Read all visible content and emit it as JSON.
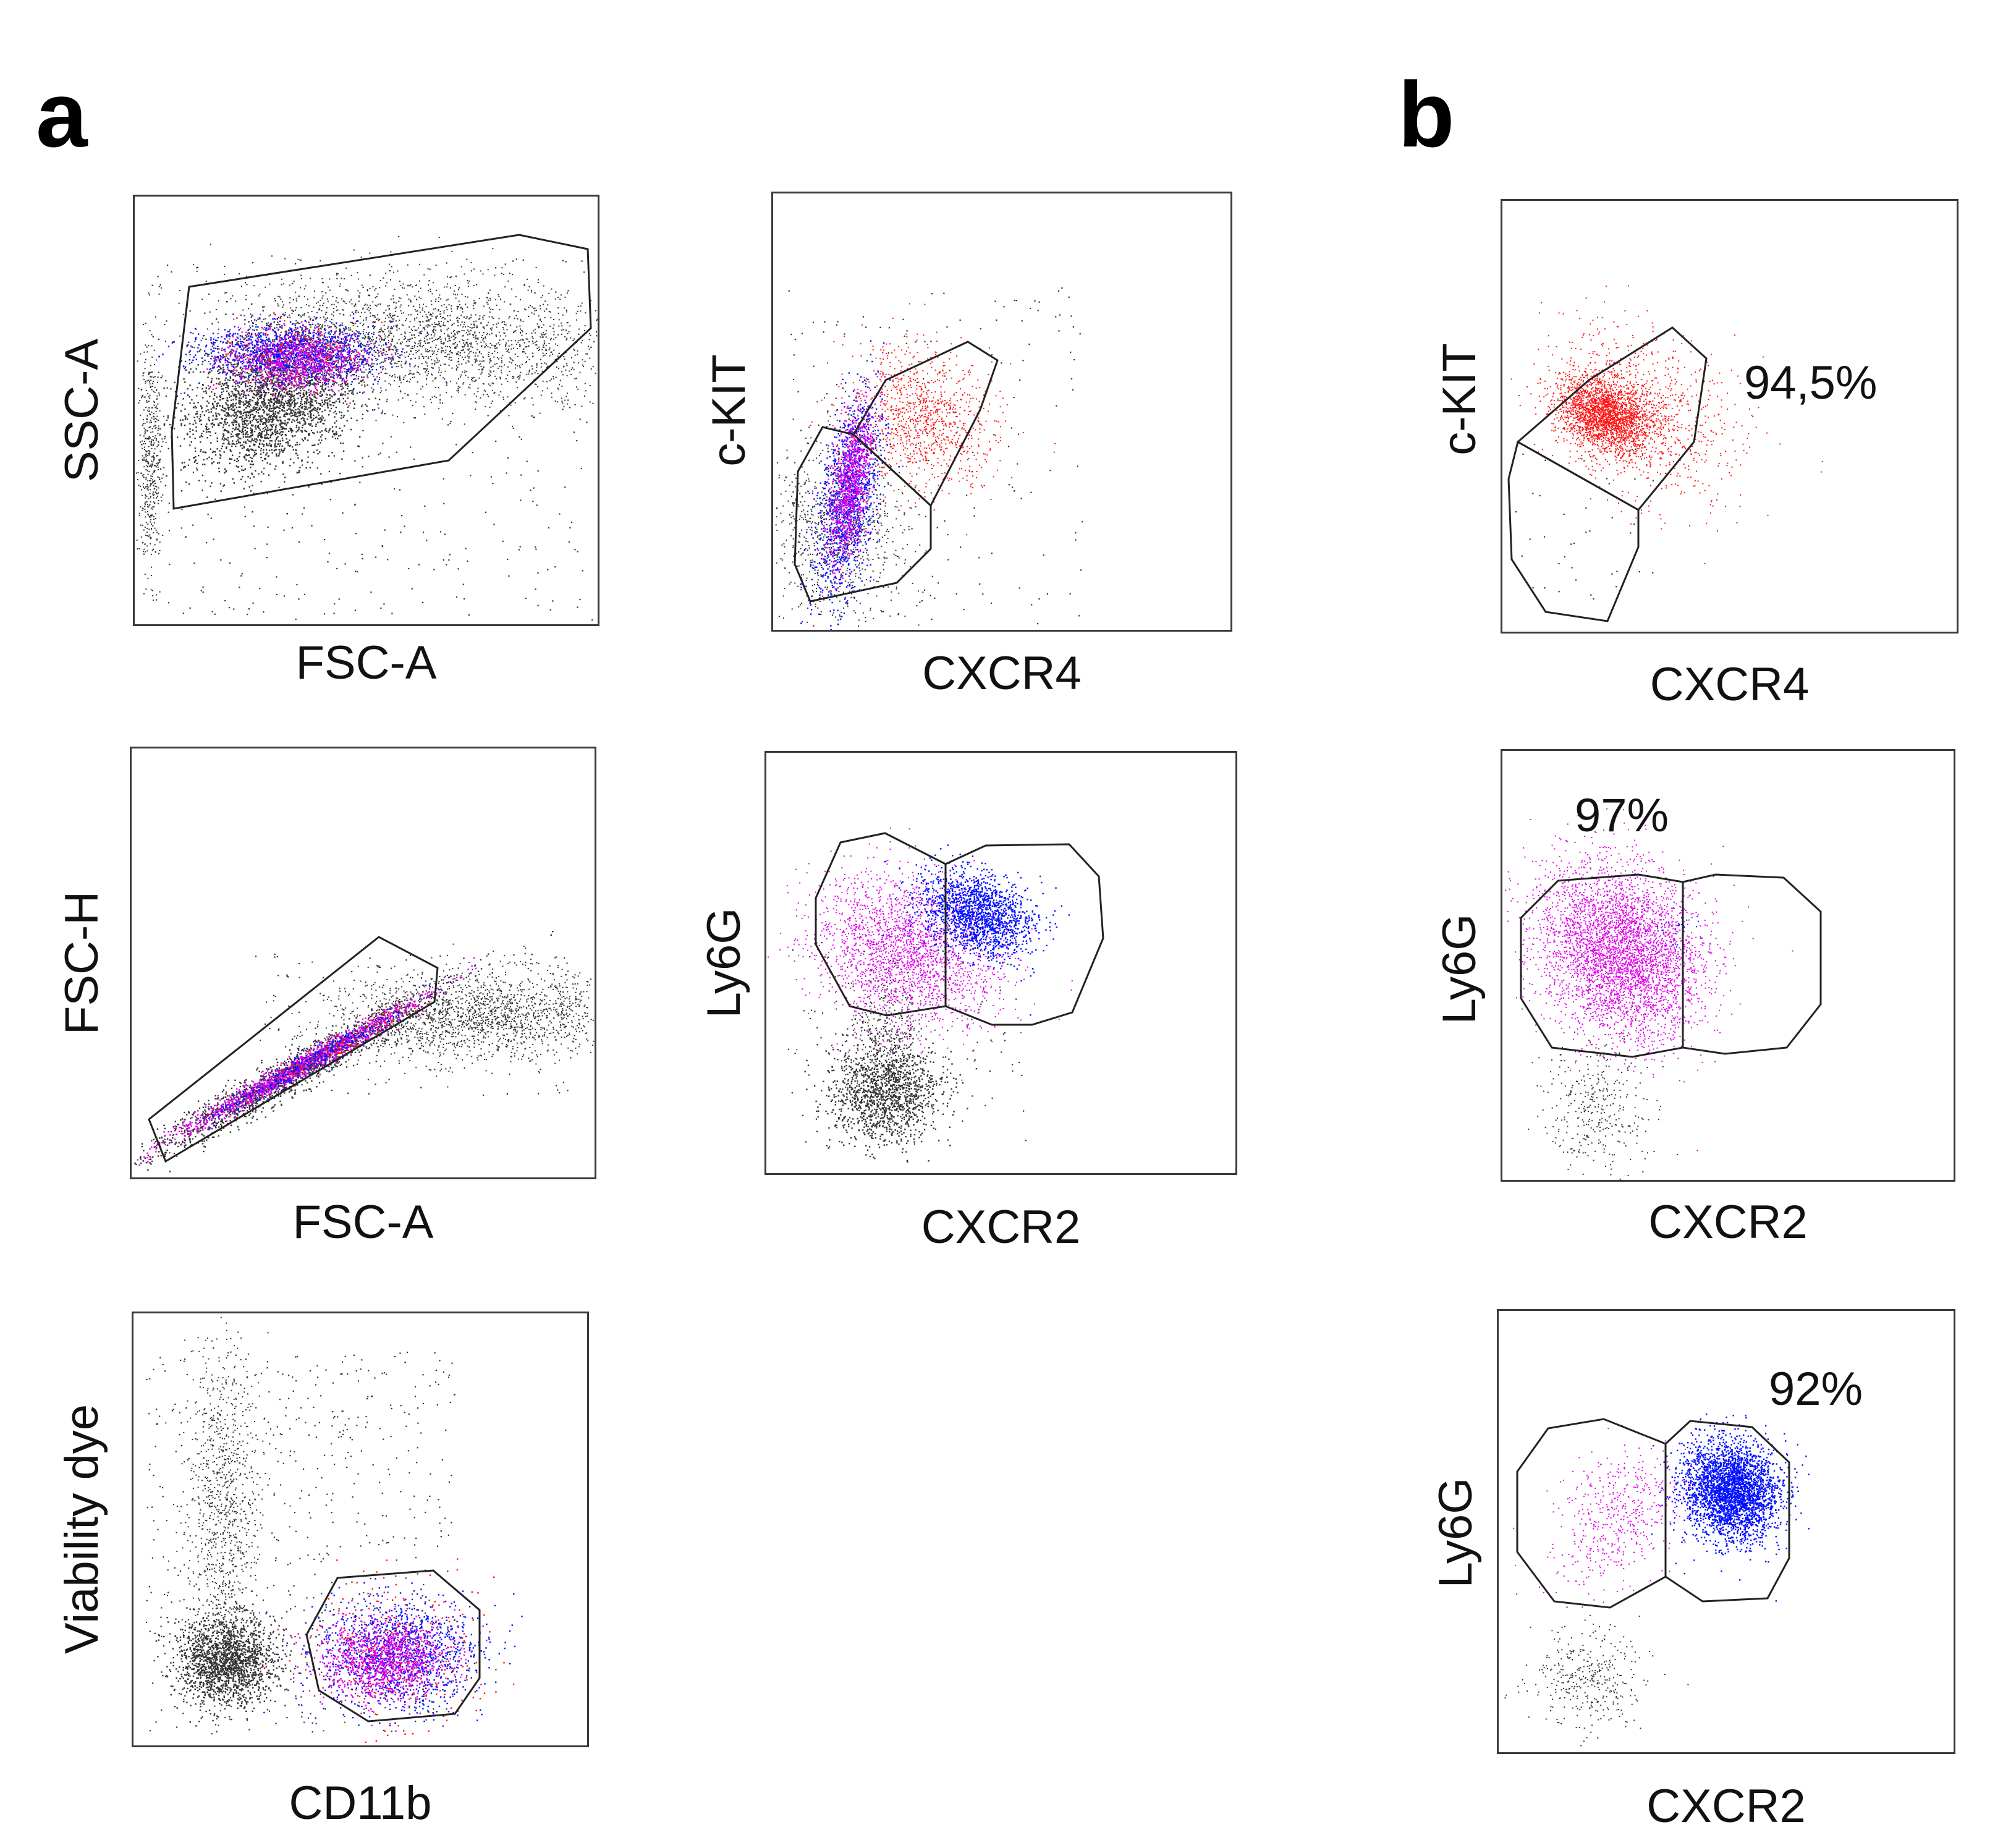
{
  "panels": {
    "a": "a",
    "b": "b"
  },
  "colors": {
    "background_events": "#333333",
    "red": "#ff1414",
    "magenta": "#e000e8",
    "blue": "#0010ff",
    "gate": "#222222"
  },
  "chart_data": [
    {
      "id": "a1",
      "type": "scatter",
      "panel": "a",
      "xlabel": "FSC-A",
      "ylabel": "SSC-A",
      "percent": "",
      "description": "Flow cytometry dot plot: cells gated by forward vs side scatter",
      "populations": [
        "background",
        "red",
        "magenta",
        "blue"
      ]
    },
    {
      "id": "a2",
      "type": "scatter",
      "panel": "a",
      "xlabel": "FSC-A",
      "ylabel": "FSC-H",
      "percent": "",
      "description": "Singlet gate: FSC-H vs FSC-A",
      "populations": [
        "background",
        "red",
        "magenta",
        "blue"
      ]
    },
    {
      "id": "a3",
      "type": "scatter",
      "panel": "a",
      "xlabel": "CD11b",
      "ylabel": "Viability dye",
      "percent": "",
      "description": "Live CD11b+ gate",
      "populations": [
        "background",
        "red",
        "magenta",
        "blue"
      ]
    },
    {
      "id": "a4",
      "type": "scatter",
      "panel": "a",
      "xlabel": "CXCR4",
      "ylabel": "c-KIT",
      "percent": "",
      "description": "c-KIT vs CXCR4 with two gates",
      "populations": [
        "background",
        "red",
        "magenta",
        "blue"
      ]
    },
    {
      "id": "a5",
      "type": "scatter",
      "panel": "a",
      "xlabel": "CXCR2",
      "ylabel": "Ly6G",
      "percent": "",
      "description": "Ly6G vs CXCR2 with two gates (CXCR2 low / high)",
      "populations": [
        "background",
        "magenta",
        "blue"
      ]
    },
    {
      "id": "b1",
      "type": "scatter",
      "panel": "b",
      "xlabel": "CXCR4",
      "ylabel": "c-KIT",
      "percent": "94,5%",
      "description": "Sorted c-KIT+ population purity",
      "populations": [
        "red"
      ]
    },
    {
      "id": "b2",
      "type": "scatter",
      "panel": "b",
      "xlabel": "CXCR2",
      "ylabel": "Ly6G",
      "percent": "97%",
      "description": "Sorted CXCR2-low population purity",
      "populations": [
        "background",
        "magenta"
      ]
    },
    {
      "id": "b3",
      "type": "scatter",
      "panel": "b",
      "xlabel": "CXCR2",
      "ylabel": "Ly6G",
      "percent": "92%",
      "description": "Sorted CXCR2-high population purity",
      "populations": [
        "background",
        "magenta",
        "blue"
      ]
    }
  ]
}
